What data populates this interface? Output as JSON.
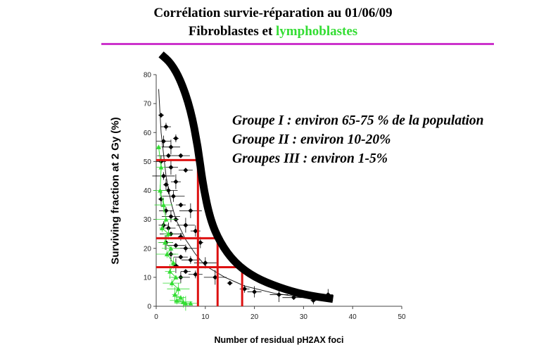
{
  "title": {
    "line1": "Corrélation survie-réparation au 01/06/09",
    "line2_black": "Fibroblastes et ",
    "line2_green": "lymphoblastes"
  },
  "annotations": [
    "Groupe I : environ 65-75 % de la population",
    "Groupe II : environ 10-20%",
    "Groupes III : environ 1-5%"
  ],
  "chart_data": {
    "type": "scatter",
    "xlabel": "Number of residual pH2AX foci",
    "ylabel": "Surviving fraction at 2 Gy (%)",
    "xlim": [
      0,
      50
    ],
    "ylim": [
      0,
      80
    ],
    "xticks": [
      0,
      10,
      20,
      30,
      40,
      50
    ],
    "yticks": [
      0,
      10,
      20,
      30,
      40,
      50,
      60,
      70,
      80
    ],
    "colors": {
      "fibroblast": "#000000",
      "lymphoblast": "#33dd33",
      "threshold": "#dd1111",
      "envelope": "#000000"
    },
    "series": [
      {
        "name": "Fibroblastes",
        "points": [
          [
            1,
            66
          ],
          [
            2,
            62
          ],
          [
            1.5,
            57
          ],
          [
            3,
            55
          ],
          [
            2.5,
            52
          ],
          [
            4,
            58
          ],
          [
            1,
            50
          ],
          [
            3,
            48
          ],
          [
            5,
            52
          ],
          [
            1.5,
            45
          ],
          [
            2,
            42
          ],
          [
            4,
            43
          ],
          [
            6,
            47
          ],
          [
            2.5,
            40
          ],
          [
            3.5,
            38
          ],
          [
            1,
            37
          ],
          [
            5,
            35
          ],
          [
            2,
            33
          ],
          [
            3,
            31
          ],
          [
            7,
            33
          ],
          [
            4,
            30
          ],
          [
            1.5,
            28
          ],
          [
            2.5,
            27
          ],
          [
            6,
            28
          ],
          [
            3,
            25
          ],
          [
            5,
            24
          ],
          [
            8,
            26
          ],
          [
            2,
            22
          ],
          [
            4,
            21
          ],
          [
            6,
            20
          ],
          [
            9,
            22
          ],
          [
            3,
            18
          ],
          [
            5,
            17
          ],
          [
            7,
            16
          ],
          [
            10,
            15
          ],
          [
            4,
            14
          ],
          [
            6,
            12
          ],
          [
            8,
            11
          ],
          [
            5,
            10
          ],
          [
            12,
            10
          ],
          [
            15,
            8
          ],
          [
            18,
            6
          ],
          [
            20,
            5
          ],
          [
            25,
            4
          ],
          [
            28,
            3
          ],
          [
            32,
            2
          ],
          [
            35,
            4
          ]
        ]
      },
      {
        "name": "Lymphoblastes",
        "points": [
          [
            0.5,
            55
          ],
          [
            1,
            48
          ],
          [
            0.8,
            40
          ],
          [
            1.5,
            35
          ],
          [
            2,
            30
          ],
          [
            1.2,
            27
          ],
          [
            2.5,
            25
          ],
          [
            1.8,
            22
          ],
          [
            3,
            20
          ],
          [
            2.2,
            18
          ],
          [
            3.5,
            15
          ],
          [
            2.8,
            12
          ],
          [
            4,
            10
          ],
          [
            3.2,
            8
          ],
          [
            4.5,
            6
          ],
          [
            3.8,
            4
          ],
          [
            5,
            3
          ],
          [
            4.2,
            2
          ],
          [
            5.5,
            1.5
          ],
          [
            6,
            1
          ],
          [
            7,
            1
          ]
        ]
      },
      {
        "name": "Fit",
        "line": [
          [
            0.5,
            75
          ],
          [
            1,
            60
          ],
          [
            2,
            45
          ],
          [
            3,
            36
          ],
          [
            4,
            30
          ],
          [
            6,
            23
          ],
          [
            8,
            18
          ],
          [
            10,
            14
          ],
          [
            14,
            10
          ],
          [
            18,
            7
          ],
          [
            24,
            4.5
          ],
          [
            30,
            3
          ],
          [
            36,
            2
          ]
        ]
      }
    ],
    "envelope_curve": [
      [
        1,
        87
      ],
      [
        3,
        84
      ],
      [
        5,
        78
      ],
      [
        7,
        68
      ],
      [
        8.5,
        55
      ],
      [
        9.5,
        42
      ],
      [
        11,
        30
      ],
      [
        13,
        22
      ],
      [
        16,
        15
      ],
      [
        20,
        10
      ],
      [
        25,
        6.5
      ],
      [
        30,
        4
      ],
      [
        36,
        2.5
      ]
    ],
    "thresholds": [
      {
        "label": "Groupe I",
        "x": 8.5,
        "y": 50.5
      },
      {
        "label": "Groupe II",
        "x": 12.5,
        "y": 23.5
      },
      {
        "label": "Groupe III",
        "x": 17.5,
        "y": 13.5
      }
    ]
  }
}
